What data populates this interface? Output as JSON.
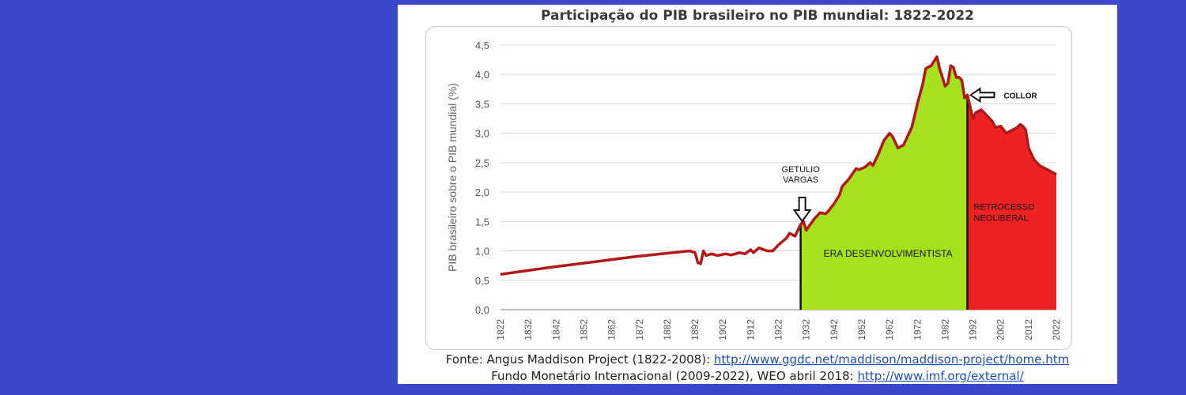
{
  "background_color": "#3c48cc",
  "colors": {
    "line": "#b11818",
    "era_fill": "#a6e11e",
    "neoliberal_fill": "#ee2222",
    "grid": "#d9d9d9"
  },
  "sources": {
    "line1_text": "Fonte: Angus Maddison Project (1822-2008): ",
    "line1_url": "http://www.ggdc.net/maddison/maddison-project/home.htm",
    "line2_text": "Fundo Monetário Internacional (2009-2022), WEO abril 2018: ",
    "line2_url": "http://www.imf.org/external/"
  },
  "chart_data": {
    "type": "area",
    "title": "Participação do PIB brasileiro no PIB mundial: 1822-2022",
    "xlabel": "",
    "ylabel": "PIB brasileiro sobre o PIB mundial (%)",
    "xlim": [
      1822,
      2022
    ],
    "ylim": [
      0,
      4.5
    ],
    "y_ticks": [
      "0,0",
      "0,5",
      "1,0",
      "1,5",
      "2,0",
      "2,5",
      "3,0",
      "3,5",
      "4,0",
      "4,5"
    ],
    "x_ticks": [
      "1822",
      "1832",
      "1842",
      "1852",
      "1862",
      "1872",
      "1882",
      "1892",
      "1902",
      "1912",
      "1922",
      "1932",
      "1942",
      "1952",
      "1962",
      "1972",
      "1982",
      "1992",
      "2002",
      "2012",
      "2022"
    ],
    "grid": true,
    "series": [
      {
        "x": [
          1822,
          1840,
          1860,
          1870,
          1880,
          1890,
          1892,
          1893,
          1894,
          1895,
          1896,
          1898,
          1900,
          1903,
          1905,
          1908,
          1910,
          1912,
          1913,
          1915,
          1918,
          1920,
          1922,
          1925,
          1926,
          1928,
          1929,
          1930,
          1931,
          1932,
          1933,
          1935,
          1937,
          1939,
          1940,
          1942,
          1944,
          1945,
          1947,
          1950,
          1951,
          1953,
          1955,
          1956,
          1958,
          1960,
          1962,
          1963,
          1965,
          1967,
          1970,
          1972,
          1974,
          1975,
          1977,
          1979,
          1980,
          1981,
          1982,
          1983,
          1984,
          1985,
          1986,
          1987,
          1988,
          1989,
          1990,
          1991,
          1992,
          1993,
          1995,
          1997,
          1999,
          2000,
          2002,
          2004,
          2006,
          2008,
          2009,
          2010,
          2011,
          2012,
          2014,
          2015,
          2016,
          2018,
          2020,
          2022
        ],
        "values": [
          0.6,
          0.72,
          0.84,
          0.9,
          0.95,
          1.0,
          0.97,
          0.8,
          0.78,
          1.0,
          0.92,
          0.95,
          0.92,
          0.95,
          0.93,
          0.97,
          0.95,
          1.02,
          0.97,
          1.05,
          1.0,
          1.0,
          1.1,
          1.22,
          1.3,
          1.25,
          1.35,
          1.45,
          1.5,
          1.35,
          1.42,
          1.55,
          1.65,
          1.63,
          1.68,
          1.8,
          1.95,
          2.1,
          2.2,
          2.4,
          2.38,
          2.42,
          2.5,
          2.45,
          2.65,
          2.88,
          3.0,
          2.95,
          2.75,
          2.8,
          3.1,
          3.5,
          3.85,
          4.1,
          4.15,
          4.3,
          4.1,
          3.95,
          3.8,
          3.85,
          4.15,
          4.12,
          3.95,
          3.95,
          3.9,
          3.6,
          3.65,
          3.45,
          3.25,
          3.35,
          3.4,
          3.3,
          3.2,
          3.1,
          3.12,
          3.0,
          3.05,
          3.1,
          3.15,
          3.12,
          3.05,
          2.75,
          2.55,
          2.5,
          2.45,
          2.4,
          2.35,
          2.3
        ]
      }
    ],
    "regions": [
      {
        "label": "ERA DESENVOLVIMENTISTA",
        "from": 1930,
        "to": 1990
      },
      {
        "label": "RETROCESSO NEOLIBERAL",
        "from": 1990,
        "to": 2022
      }
    ],
    "annotations": [
      {
        "label": "GETÚLIO VARGAS",
        "x": 1930
      },
      {
        "label": "COLLOR",
        "x": 1990
      }
    ]
  }
}
